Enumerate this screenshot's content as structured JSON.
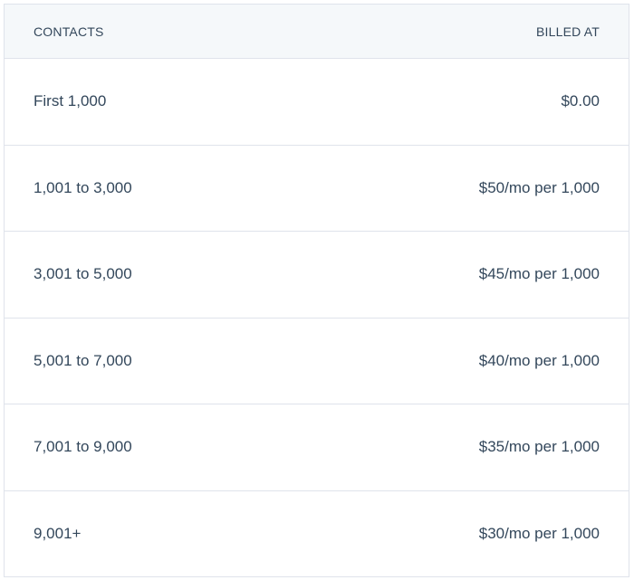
{
  "table": {
    "headers": {
      "contacts": "CONTACTS",
      "billed_at": "BILLED AT"
    },
    "rows": [
      {
        "contacts": "First 1,000",
        "billed_at": "$0.00"
      },
      {
        "contacts": "1,001 to 3,000",
        "billed_at": "$50/mo per 1,000"
      },
      {
        "contacts": "3,001 to 5,000",
        "billed_at": "$45/mo per 1,000"
      },
      {
        "contacts": "5,001 to 7,000",
        "billed_at": "$40/mo per 1,000"
      },
      {
        "contacts": "7,001 to 9,000",
        "billed_at": "$35/mo per 1,000"
      },
      {
        "contacts": "9,001+",
        "billed_at": "$30/mo per 1,000"
      }
    ]
  }
}
